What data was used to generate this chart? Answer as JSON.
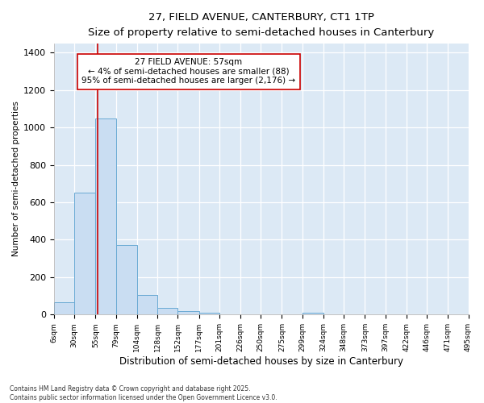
{
  "title1": "27, FIELD AVENUE, CANTERBURY, CT1 1TP",
  "title2": "Size of property relative to semi-detached houses in Canterbury",
  "xlabel": "Distribution of semi-detached houses by size in Canterbury",
  "ylabel": "Number of semi-detached properties",
  "footnote1": "Contains HM Land Registry data © Crown copyright and database right 2025.",
  "footnote2": "Contains public sector information licensed under the Open Government Licence v3.0.",
  "bar_left_edges": [
    6,
    30,
    55,
    79,
    104,
    128,
    152,
    177,
    201,
    226,
    250,
    275,
    299,
    324,
    348,
    373,
    397,
    422,
    446,
    471
  ],
  "bar_widths": [
    24,
    25,
    24,
    25,
    24,
    24,
    25,
    24,
    25,
    24,
    25,
    24,
    25,
    24,
    25,
    24,
    25,
    24,
    25,
    24
  ],
  "bar_heights": [
    65,
    650,
    1050,
    370,
    105,
    35,
    18,
    8,
    0,
    0,
    0,
    0,
    10,
    0,
    0,
    0,
    0,
    0,
    0,
    0
  ],
  "bar_color": "#c9ddf2",
  "bar_edge_color": "#6aaad4",
  "vline_x": 57,
  "vline_color": "#cc0000",
  "annotation_text": "27 FIELD AVENUE: 57sqm\n← 4% of semi-detached houses are smaller (88)\n95% of semi-detached houses are larger (2,176) →",
  "ylim": [
    0,
    1450
  ],
  "xlim": [
    6,
    495
  ],
  "tick_positions": [
    6,
    30,
    55,
    79,
    104,
    128,
    152,
    177,
    201,
    226,
    250,
    275,
    299,
    324,
    348,
    373,
    397,
    422,
    446,
    471,
    495
  ],
  "tick_labels": [
    "6sqm",
    "30sqm",
    "55sqm",
    "79sqm",
    "104sqm",
    "128sqm",
    "152sqm",
    "177sqm",
    "201sqm",
    "226sqm",
    "250sqm",
    "275sqm",
    "299sqm",
    "324sqm",
    "348sqm",
    "373sqm",
    "397sqm",
    "422sqm",
    "446sqm",
    "471sqm",
    "495sqm"
  ],
  "plot_bg_color": "#dce9f5",
  "fig_bg_color": "#ffffff",
  "grid_color": "#ffffff",
  "yticks": [
    0,
    200,
    400,
    600,
    800,
    1000,
    1200,
    1400
  ]
}
